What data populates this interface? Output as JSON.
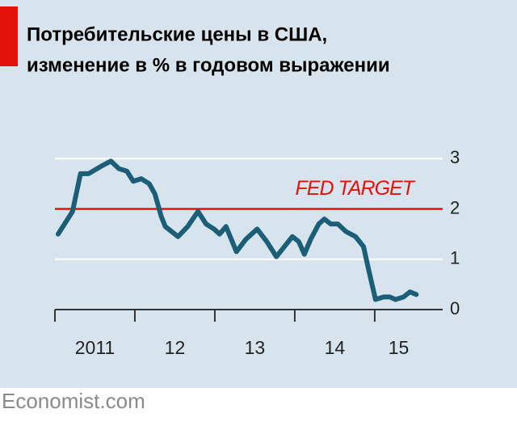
{
  "chart_data": {
    "type": "line",
    "title": [
      "Потребительские цены в США,",
      "изменение в % в годовом выражении"
    ],
    "source": "Economist.com",
    "annotation": {
      "value": 2,
      "label": "FED TARGET",
      "color": "#e3120b"
    },
    "x": [
      2011.04,
      2011.22,
      2011.32,
      2011.42,
      2011.58,
      2011.7,
      2011.8,
      2011.9,
      2011.98,
      2012.08,
      2012.18,
      2012.25,
      2012.33,
      2012.38,
      2012.54,
      2012.66,
      2012.79,
      2012.89,
      2012.99,
      2013.06,
      2013.14,
      2013.27,
      2013.39,
      2013.53,
      2013.65,
      2013.77,
      2013.87,
      2013.97,
      2014.05,
      2014.12,
      2014.2,
      2014.3,
      2014.37,
      2014.45,
      2014.54,
      2014.64,
      2014.76,
      2014.86,
      2014.93,
      2015.01,
      2015.11,
      2015.19,
      2015.26,
      2015.36,
      2015.44,
      2015.52
    ],
    "series": [
      {
        "color": "#1b5e78",
        "values": [
          1.5,
          1.95,
          2.7,
          2.7,
          2.85,
          2.95,
          2.8,
          2.75,
          2.55,
          2.6,
          2.5,
          2.3,
          1.85,
          1.65,
          1.45,
          1.65,
          1.95,
          1.7,
          1.6,
          1.5,
          1.65,
          1.15,
          1.4,
          1.6,
          1.35,
          1.05,
          1.25,
          1.45,
          1.35,
          1.1,
          1.4,
          1.7,
          1.8,
          1.7,
          1.7,
          1.55,
          1.45,
          1.25,
          0.75,
          0.2,
          0.25,
          0.25,
          0.2,
          0.25,
          0.35,
          0.3
        ]
      }
    ],
    "xlim": [
      2011,
      2015.85
    ],
    "year_starts": [
      2011,
      2012,
      2013,
      2014,
      2015
    ],
    "xticks": [
      {
        "value": 2011.5,
        "label": "2011"
      },
      {
        "value": 2012.5,
        "label": "12"
      },
      {
        "value": 2013.5,
        "label": "13"
      },
      {
        "value": 2014.5,
        "label": "14"
      },
      {
        "value": 2015.3,
        "label": "15"
      }
    ],
    "ylim": [
      0,
      3.1
    ],
    "yticks": [
      0,
      1,
      2,
      3
    ],
    "grid": true
  }
}
